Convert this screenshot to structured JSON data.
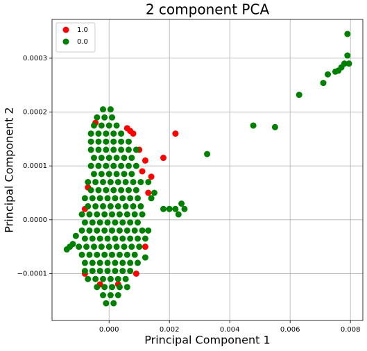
{
  "chart_data": {
    "type": "scatter",
    "title": "2 component PCA",
    "x_label": "Principal Component 1",
    "y_label": "Principal Component 2",
    "xlim": [
      -0.00189,
      0.00841
    ],
    "ylim": [
      -0.000187,
      0.000372
    ],
    "xticks": [
      {
        "value": 0,
        "label": "0.000"
      },
      {
        "value": 0.002,
        "label": "0.002"
      },
      {
        "value": 0.004,
        "label": "0.004"
      },
      {
        "value": 0.006,
        "label": "0.006"
      },
      {
        "value": 0.008,
        "label": "0.008"
      }
    ],
    "yticks": [
      {
        "value": -0.0001,
        "label": "−0.0001"
      },
      {
        "value": 0,
        "label": "0.0000"
      },
      0.0001,
      0.0002,
      0.0003
    ],
    "grid": true,
    "legend": "upper left",
    "series": [
      {
        "name": "1.0",
        "color": "#ff0000",
        "x": [
          0.0008,
          0.0006,
          0.0007,
          0.0022,
          0.0012,
          0.0018,
          0.001,
          -0.0007,
          -0.0008,
          0.0013,
          0.0011,
          0.0012,
          0.0003,
          -0.0003,
          -0.0008,
          -0.00045,
          0.0014,
          0.0009
        ],
        "y": [
          0.00016,
          0.00017,
          0.000165,
          0.00016,
          0.00011,
          0.000115,
          0.00013,
          6e-05,
          2e-05,
          5e-05,
          9e-05,
          -5e-05,
          -0.00012,
          -0.00012,
          -0.0001,
          0.00018,
          8e-05,
          -0.0001
        ]
      },
      {
        "name": "0.0",
        "color": "#008000",
        "x": [
          -0.0002,
          5e-05,
          -0.0004,
          -0.00015,
          0.0001,
          -0.0005,
          -0.00025,
          0,
          0.00025,
          -0.0006,
          -0.00035,
          -0.0001,
          0.00015,
          0.0004,
          -0.0006,
          -0.00035,
          -0.0001,
          0.00015,
          0.0004,
          0.00065,
          -0.0006,
          -0.00035,
          -0.0001,
          0.00015,
          0.0004,
          0.00065,
          0.0009,
          -0.0005,
          -0.00025,
          0,
          0.00025,
          0.0005,
          0.00075,
          -0.0006,
          -0.00035,
          -0.0001,
          0.00015,
          0.0004,
          0.00065,
          0.0009,
          -0.0005,
          -0.00025,
          0,
          0.00025,
          0.0005,
          0.00075,
          -0.0007,
          -0.00045,
          -0.0002,
          5e-05,
          0.0003,
          0.00055,
          0.0008,
          0.00105,
          -0.0006,
          -0.00035,
          -0.0001,
          0.00015,
          0.0004,
          0.00065,
          0.0009,
          -0.0008,
          -0.00055,
          -0.0003,
          -5e-05,
          0.0002,
          0.00045,
          0.0007,
          0.00095,
          -0.0007,
          -0.00045,
          -0.0002,
          5e-05,
          0.0003,
          0.00055,
          0.0008,
          0.00105,
          -0.0009,
          -0.00065,
          -0.0004,
          -0.00015,
          0.0001,
          0.00035,
          0.0006,
          0.00085,
          0.0011,
          -0.0008,
          -0.00055,
          -0.0003,
          -5e-05,
          0.0002,
          0.00045,
          0.0007,
          0.00095,
          -0.0009,
          -0.00065,
          -0.0004,
          -0.00015,
          0.0001,
          0.00035,
          0.0006,
          0.00085,
          0.0011,
          -0.0008,
          -0.00055,
          -0.0003,
          -5e-05,
          0.0002,
          0.00045,
          0.0007,
          0.00095,
          0.0012,
          -0.001,
          -0.00075,
          -0.0005,
          -0.00025,
          0,
          0.00025,
          0.0005,
          0.00075,
          0.001,
          -0.0009,
          -0.00065,
          -0.0004,
          -0.00015,
          0.0001,
          0.00035,
          0.0006,
          0.00085,
          -0.0008,
          -0.00055,
          -0.0003,
          -5e-05,
          0.0002,
          0.00045,
          0.0007,
          0.00095,
          -0.0008,
          -0.00055,
          -0.0003,
          -5e-05,
          0.0002,
          0.00045,
          0.0007,
          -0.0007,
          -0.00045,
          -0.0002,
          5e-05,
          0.0003,
          0.00055,
          -0.0004,
          -0.00015,
          0.0001,
          0.00035,
          0.0006,
          -0.0002,
          5e-05,
          0.0003,
          -0.0001,
          0.00015,
          0.00325,
          0.00478,
          0.0055,
          0.0063,
          0.0071,
          0.00725,
          0.0075,
          0.0076,
          0.0077,
          0.0078,
          0.0079,
          0.0079,
          0.00795,
          0.0022,
          0.0024,
          0.0025,
          0.0023,
          0.002,
          0.0018,
          -0.0014,
          -0.0013,
          -0.0012,
          -0.0011,
          0.0013,
          0.0012,
          0.0013,
          0.0014,
          0.0015
        ],
        "y": [
          0.000205,
          0.000205,
          0.00019,
          0.00019,
          0.00019,
          0.000175,
          0.000175,
          0.000175,
          0.000175,
          0.00016,
          0.00016,
          0.00016,
          0.00016,
          0.00016,
          0.000145,
          0.000145,
          0.000145,
          0.000145,
          0.000145,
          0.000145,
          0.00013,
          0.00013,
          0.00013,
          0.00013,
          0.00013,
          0.00013,
          0.00013,
          0.000115,
          0.000115,
          0.000115,
          0.000115,
          0.000115,
          0.000115,
          0.0001,
          0.0001,
          0.0001,
          0.0001,
          0.0001,
          0.0001,
          0.0001,
          8.5e-05,
          8.5e-05,
          8.5e-05,
          8.5e-05,
          8.5e-05,
          8.5e-05,
          7e-05,
          7e-05,
          7e-05,
          7e-05,
          7e-05,
          7e-05,
          7e-05,
          7e-05,
          5.5e-05,
          5.5e-05,
          5.5e-05,
          5.5e-05,
          5.5e-05,
          5.5e-05,
          5.5e-05,
          4e-05,
          4e-05,
          4e-05,
          4e-05,
          4e-05,
          4e-05,
          4e-05,
          4e-05,
          2.5e-05,
          2.5e-05,
          2.5e-05,
          2.5e-05,
          2.5e-05,
          2.5e-05,
          2.5e-05,
          2.5e-05,
          1e-05,
          1e-05,
          1e-05,
          1e-05,
          1e-05,
          1e-05,
          1e-05,
          1e-05,
          1e-05,
          -5e-06,
          -5e-06,
          -5e-06,
          -5e-06,
          -5e-06,
          -5e-06,
          -5e-06,
          -5e-06,
          -2e-05,
          -2e-05,
          -2e-05,
          -2e-05,
          -2e-05,
          -2e-05,
          -2e-05,
          -2e-05,
          -2e-05,
          -3.5e-05,
          -3.5e-05,
          -3.5e-05,
          -3.5e-05,
          -3.5e-05,
          -3.5e-05,
          -3.5e-05,
          -3.5e-05,
          -3.5e-05,
          -5e-05,
          -5e-05,
          -5e-05,
          -5e-05,
          -5e-05,
          -5e-05,
          -5e-05,
          -5e-05,
          -5e-05,
          -6.5e-05,
          -6.5e-05,
          -6.5e-05,
          -6.5e-05,
          -6.5e-05,
          -6.5e-05,
          -6.5e-05,
          -6.5e-05,
          -8e-05,
          -8e-05,
          -8e-05,
          -8e-05,
          -8e-05,
          -8e-05,
          -8e-05,
          -8e-05,
          -9.5e-05,
          -9.5e-05,
          -9.5e-05,
          -9.5e-05,
          -9.5e-05,
          -9.5e-05,
          -9.5e-05,
          -0.00011,
          -0.00011,
          -0.00011,
          -0.00011,
          -0.00011,
          -0.00011,
          -0.000125,
          -0.000125,
          -0.000125,
          -0.000125,
          -0.000125,
          -0.00014,
          -0.00014,
          -0.00014,
          -0.000155,
          -0.000155,
          0.000122,
          0.000175,
          0.000172,
          0.000232,
          0.000254,
          0.00027,
          0.000275,
          0.000277,
          0.000283,
          0.00029,
          0.000305,
          0.000345,
          0.00029,
          2e-05,
          3e-05,
          2e-05,
          1e-05,
          2e-05,
          2e-05,
          -5.5e-05,
          -5e-05,
          -4.5e-05,
          -3e-05,
          7e-05,
          -7e-05,
          -2e-05,
          4e-05,
          5e-05
        ]
      }
    ]
  }
}
